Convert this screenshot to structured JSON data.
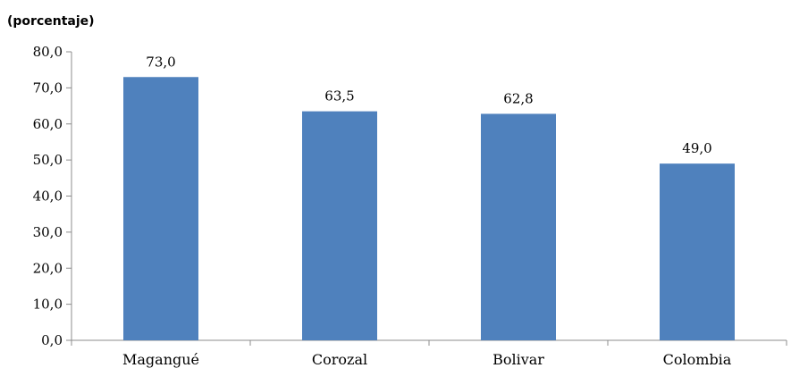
{
  "chart_data": {
    "type": "bar",
    "title": "",
    "subtitle": "(porcentaje)",
    "categories": [
      "Magangué",
      "Corozal",
      "Bolivar",
      "Colombia"
    ],
    "values": [
      73.0,
      63.5,
      62.8,
      49.0
    ],
    "value_labels": [
      "73,0",
      "63,5",
      "62,8",
      "49,0"
    ],
    "ylim": [
      0,
      80
    ],
    "yticks": [
      0,
      10,
      20,
      30,
      40,
      50,
      60,
      70,
      80
    ],
    "ytick_labels": [
      "0,0",
      "10,0",
      "20,0",
      "30,0",
      "40,0",
      "50,0",
      "60,0",
      "70,0",
      "80,0"
    ],
    "xlabel": "",
    "ylabel": "",
    "grid": false,
    "legend": "none",
    "bar_color": "#4F81BD"
  }
}
